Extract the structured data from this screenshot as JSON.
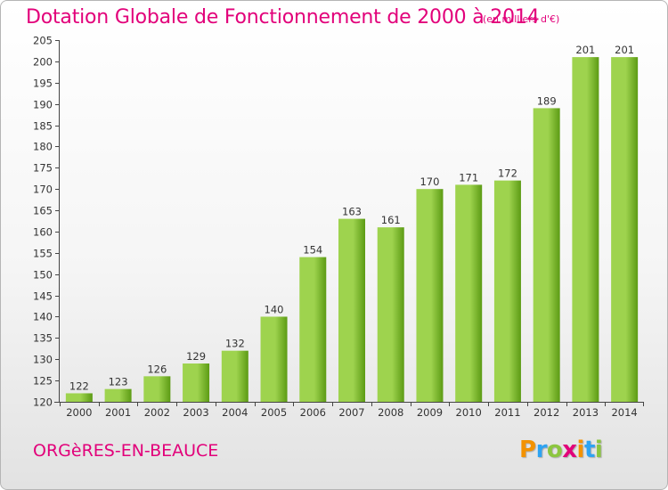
{
  "header": {
    "title": "Dotation Globale de Fonctionnement de 2000 à 2014",
    "unit_note": "(en milliers d'€)"
  },
  "footer": {
    "commune": "ORGèRES-EN-BEAUCE",
    "brand_letters": [
      "P",
      "r",
      "o",
      "x",
      "i",
      "t",
      "i"
    ],
    "brand_colors": [
      "#f39200",
      "#2ea3f2",
      "#8cc63f",
      "#e2007a",
      "#f39200",
      "#2ea3f2",
      "#8cc63f"
    ]
  },
  "chart_data": {
    "type": "bar",
    "title": "Dotation Globale de Fonctionnement de 2000 à 2014",
    "subtitle": "(en milliers d'€)",
    "xlabel": "",
    "ylabel": "",
    "categories": [
      "2000",
      "2001",
      "2002",
      "2003",
      "2004",
      "2005",
      "2006",
      "2007",
      "2008",
      "2009",
      "2010",
      "2011",
      "2012",
      "2013",
      "2014"
    ],
    "values": [
      122,
      123,
      126,
      129,
      132,
      140,
      154,
      163,
      161,
      170,
      171,
      172,
      189,
      201,
      201
    ],
    "data_labels": [
      "122",
      "123",
      "126",
      "129",
      "132",
      "140",
      "154",
      "163",
      "161",
      "170",
      "171",
      "172",
      "189",
      "201",
      "201"
    ],
    "ylim": [
      120,
      205
    ],
    "yticks": [
      120,
      125,
      130,
      135,
      140,
      145,
      150,
      155,
      160,
      165,
      170,
      175,
      180,
      185,
      190,
      195,
      200,
      205
    ],
    "grid": false,
    "legend": "none",
    "bar_color_light": "#9ed34e",
    "bar_color_dark": "#5c9b14"
  }
}
